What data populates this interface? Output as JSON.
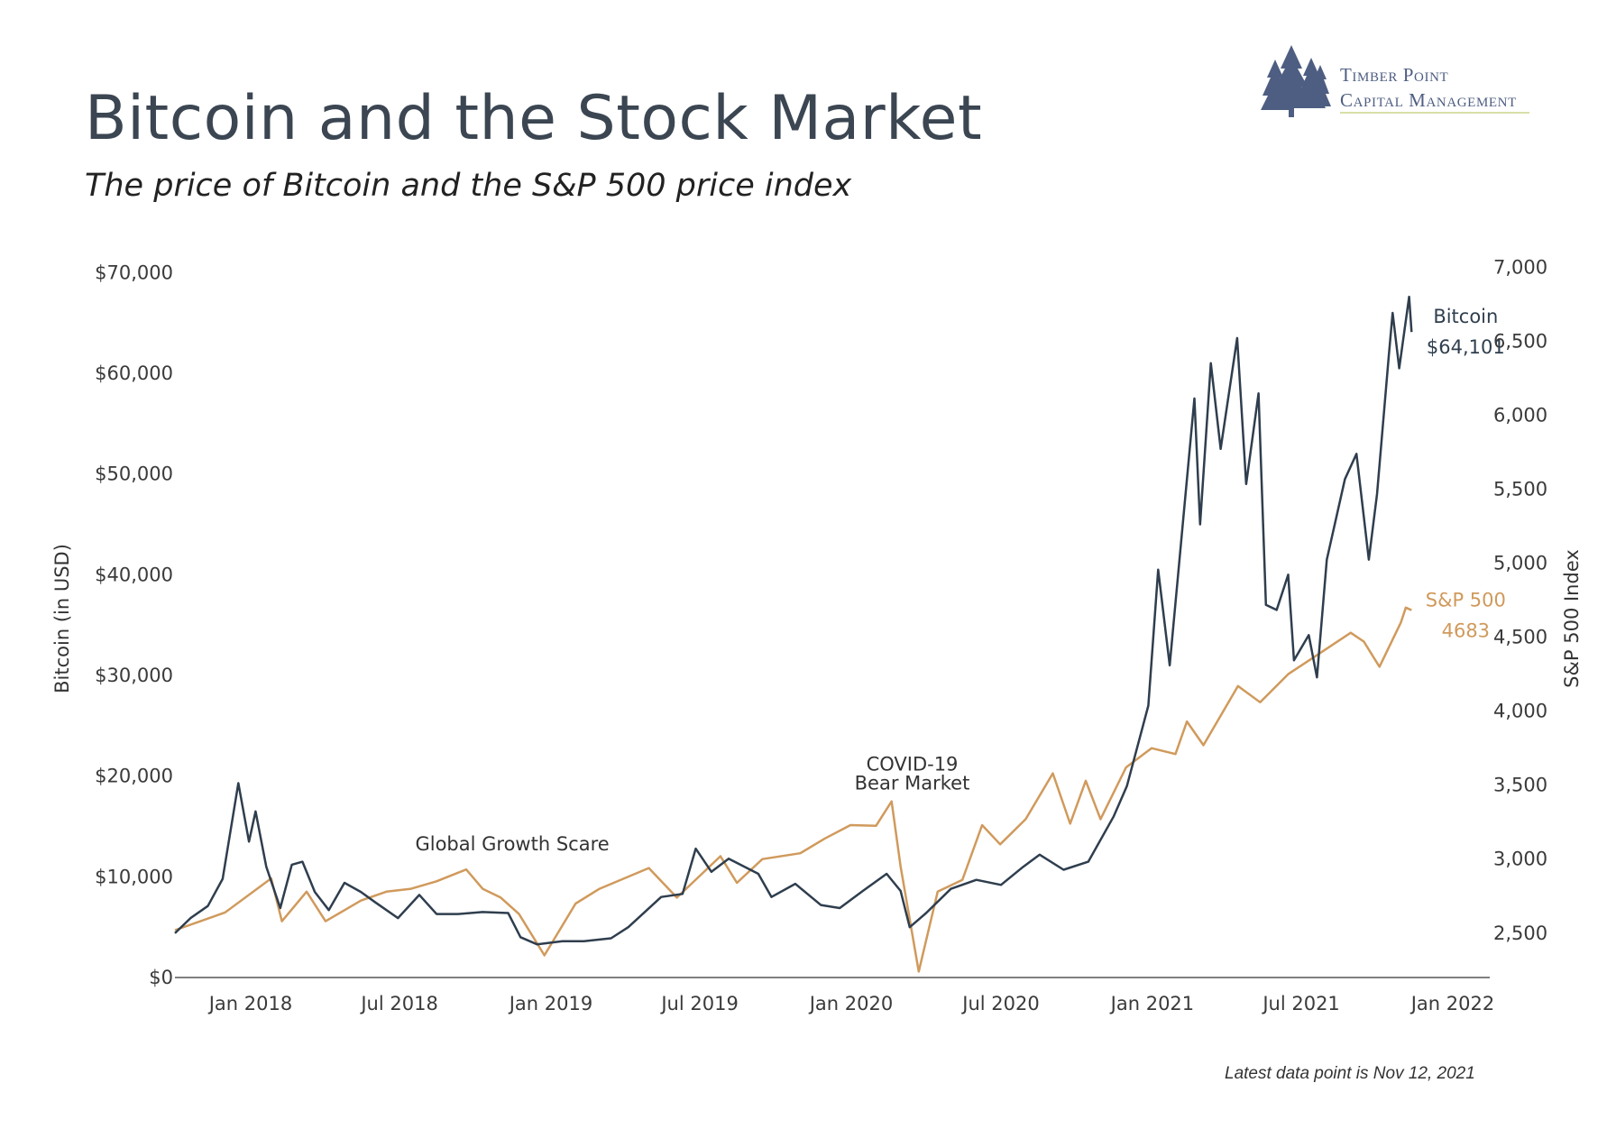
{
  "header": {
    "title": "Bitcoin and the Stock Market",
    "subtitle": "The price of Bitcoin and the S&P 500 price index"
  },
  "logo": {
    "icon": "pine-trees-icon",
    "line1": "Timber Point",
    "line2": "Capital Management",
    "color": "#4e5e82"
  },
  "footnote": "Latest data point is Nov 12, 2021",
  "colors": {
    "bitcoin": "#2f3e4e",
    "sp500": "#d09a5c",
    "axis": "#555555"
  },
  "chart_data": {
    "type": "line",
    "x_ticks": [
      "Jan 2018",
      "Jul 2018",
      "Jan 2019",
      "Jul 2019",
      "Jan 2020",
      "Jul 2020",
      "Jan 2021",
      "Jul 2021",
      "Jan 2022"
    ],
    "x_tick_dates": [
      "2018-01-01",
      "2018-07-01",
      "2019-01-01",
      "2019-07-01",
      "2020-01-01",
      "2020-07-01",
      "2021-01-01",
      "2021-07-01",
      "2022-01-01"
    ],
    "xlim": [
      "2017-10-01",
      "2022-02-15"
    ],
    "y_left": {
      "label": "Bitcoin (in USD)",
      "range": [
        0,
        72000
      ],
      "ticks": [
        0,
        10000,
        20000,
        30000,
        40000,
        50000,
        60000,
        70000
      ],
      "tick_labels": [
        "$0",
        "$10,000",
        "$20,000",
        "$30,000",
        "$40,000",
        "$50,000",
        "$60,000",
        "$70,000"
      ]
    },
    "y_right": {
      "label": "S&P 500 Index",
      "range": [
        2200,
        7100
      ],
      "ticks": [
        2500,
        3000,
        3500,
        4000,
        4500,
        5000,
        5500,
        6000,
        6500,
        7000
      ],
      "tick_labels": [
        "2,500",
        "3,000",
        "3,500",
        "4,000",
        "4,500",
        "5,000",
        "5,500",
        "6,000",
        "6,500",
        "7,000"
      ]
    },
    "series": [
      {
        "name": "Bitcoin",
        "axis": "left",
        "end_label": "$64,101",
        "points": [
          [
            "2017-10-01",
            4400
          ],
          [
            "2017-10-20",
            5900
          ],
          [
            "2017-11-10",
            7100
          ],
          [
            "2017-11-28",
            9800
          ],
          [
            "2017-12-17",
            19300
          ],
          [
            "2017-12-30",
            13500
          ],
          [
            "2018-01-07",
            16500
          ],
          [
            "2018-01-20",
            11000
          ],
          [
            "2018-02-06",
            6900
          ],
          [
            "2018-02-20",
            11200
          ],
          [
            "2018-03-05",
            11500
          ],
          [
            "2018-03-20",
            8500
          ],
          [
            "2018-04-06",
            6700
          ],
          [
            "2018-04-25",
            9400
          ],
          [
            "2018-05-15",
            8500
          ],
          [
            "2018-06-01",
            7500
          ],
          [
            "2018-06-29",
            5900
          ],
          [
            "2018-07-25",
            8200
          ],
          [
            "2018-08-15",
            6300
          ],
          [
            "2018-09-10",
            6300
          ],
          [
            "2018-10-10",
            6500
          ],
          [
            "2018-11-10",
            6400
          ],
          [
            "2018-11-25",
            4000
          ],
          [
            "2018-12-15",
            3300
          ],
          [
            "2019-01-15",
            3600
          ],
          [
            "2019-02-10",
            3600
          ],
          [
            "2019-03-15",
            3900
          ],
          [
            "2019-04-05",
            5000
          ],
          [
            "2019-05-15",
            8000
          ],
          [
            "2019-06-10",
            8300
          ],
          [
            "2019-06-26",
            12800
          ],
          [
            "2019-07-15",
            10500
          ],
          [
            "2019-08-05",
            11800
          ],
          [
            "2019-09-10",
            10300
          ],
          [
            "2019-09-26",
            8000
          ],
          [
            "2019-10-25",
            9300
          ],
          [
            "2019-11-25",
            7200
          ],
          [
            "2019-12-18",
            6900
          ],
          [
            "2020-01-15",
            8600
          ],
          [
            "2020-02-13",
            10300
          ],
          [
            "2020-03-01",
            8600
          ],
          [
            "2020-03-12",
            5000
          ],
          [
            "2020-04-01",
            6400
          ],
          [
            "2020-05-01",
            8800
          ],
          [
            "2020-06-01",
            9700
          ],
          [
            "2020-07-01",
            9200
          ],
          [
            "2020-07-28",
            11000
          ],
          [
            "2020-08-17",
            12200
          ],
          [
            "2020-09-15",
            10700
          ],
          [
            "2020-10-15",
            11500
          ],
          [
            "2020-11-15",
            16000
          ],
          [
            "2020-12-01",
            19000
          ],
          [
            "2020-12-27",
            27000
          ],
          [
            "2021-01-08",
            40500
          ],
          [
            "2021-01-22",
            31000
          ],
          [
            "2021-02-08",
            46000
          ],
          [
            "2021-02-21",
            57500
          ],
          [
            "2021-02-28",
            45000
          ],
          [
            "2021-03-13",
            61000
          ],
          [
            "2021-03-25",
            52500
          ],
          [
            "2021-04-14",
            63500
          ],
          [
            "2021-04-25",
            49000
          ],
          [
            "2021-05-10",
            58000
          ],
          [
            "2021-05-19",
            37000
          ],
          [
            "2021-06-01",
            36500
          ],
          [
            "2021-06-15",
            40000
          ],
          [
            "2021-06-22",
            31500
          ],
          [
            "2021-07-10",
            34000
          ],
          [
            "2021-07-20",
            29800
          ],
          [
            "2021-08-01",
            41500
          ],
          [
            "2021-08-23",
            49500
          ],
          [
            "2021-09-06",
            52000
          ],
          [
            "2021-09-21",
            41500
          ],
          [
            "2021-10-01",
            48000
          ],
          [
            "2021-10-15",
            61500
          ],
          [
            "2021-10-20",
            66000
          ],
          [
            "2021-10-28",
            60500
          ],
          [
            "2021-11-09",
            67600
          ],
          [
            "2021-11-12",
            64101
          ]
        ]
      },
      {
        "name": "S&P 500",
        "axis": "right",
        "end_label": "4683",
        "points": [
          [
            "2017-10-01",
            2520
          ],
          [
            "2017-11-01",
            2580
          ],
          [
            "2017-12-01",
            2640
          ],
          [
            "2018-01-26",
            2870
          ],
          [
            "2018-02-08",
            2580
          ],
          [
            "2018-03-10",
            2780
          ],
          [
            "2018-04-02",
            2580
          ],
          [
            "2018-05-15",
            2720
          ],
          [
            "2018-06-15",
            2780
          ],
          [
            "2018-07-15",
            2800
          ],
          [
            "2018-08-15",
            2850
          ],
          [
            "2018-09-20",
            2930
          ],
          [
            "2018-10-10",
            2800
          ],
          [
            "2018-11-01",
            2740
          ],
          [
            "2018-11-23",
            2630
          ],
          [
            "2018-12-24",
            2350
          ],
          [
            "2019-01-31",
            2700
          ],
          [
            "2019-03-01",
            2800
          ],
          [
            "2019-04-30",
            2940
          ],
          [
            "2019-06-03",
            2740
          ],
          [
            "2019-07-26",
            3020
          ],
          [
            "2019-08-15",
            2840
          ],
          [
            "2019-09-15",
            3000
          ],
          [
            "2019-10-31",
            3040
          ],
          [
            "2019-11-30",
            3140
          ],
          [
            "2019-12-31",
            3230
          ],
          [
            "2020-01-31",
            3225
          ],
          [
            "2020-02-19",
            3390
          ],
          [
            "2020-03-01",
            2950
          ],
          [
            "2020-03-23",
            2240
          ],
          [
            "2020-04-15",
            2780
          ],
          [
            "2020-05-15",
            2860
          ],
          [
            "2020-06-08",
            3230
          ],
          [
            "2020-06-30",
            3100
          ],
          [
            "2020-07-31",
            3270
          ],
          [
            "2020-09-02",
            3580
          ],
          [
            "2020-09-23",
            3240
          ],
          [
            "2020-10-12",
            3530
          ],
          [
            "2020-10-30",
            3270
          ],
          [
            "2020-11-30",
            3620
          ],
          [
            "2020-12-31",
            3750
          ],
          [
            "2021-01-29",
            3710
          ],
          [
            "2021-02-12",
            3930
          ],
          [
            "2021-03-04",
            3770
          ],
          [
            "2021-04-15",
            4170
          ],
          [
            "2021-05-12",
            4060
          ],
          [
            "2021-06-15",
            4250
          ],
          [
            "2021-07-15",
            4360
          ],
          [
            "2021-08-30",
            4530
          ],
          [
            "2021-09-15",
            4470
          ],
          [
            "2021-10-04",
            4300
          ],
          [
            "2021-10-30",
            4600
          ],
          [
            "2021-11-05",
            4700
          ],
          [
            "2021-11-12",
            4683
          ]
        ]
      }
    ],
    "annotations": [
      {
        "id": "growth",
        "text": "Global Growth Scare",
        "x": "2018-11-15",
        "y_right": 3060
      },
      {
        "id": "covid1",
        "text": "COVID-19",
        "x": "2020-03-15",
        "y_right": 3600
      },
      {
        "id": "covid2",
        "text": "Bear Market",
        "x": "2020-03-15",
        "y_right": 3470
      }
    ]
  }
}
